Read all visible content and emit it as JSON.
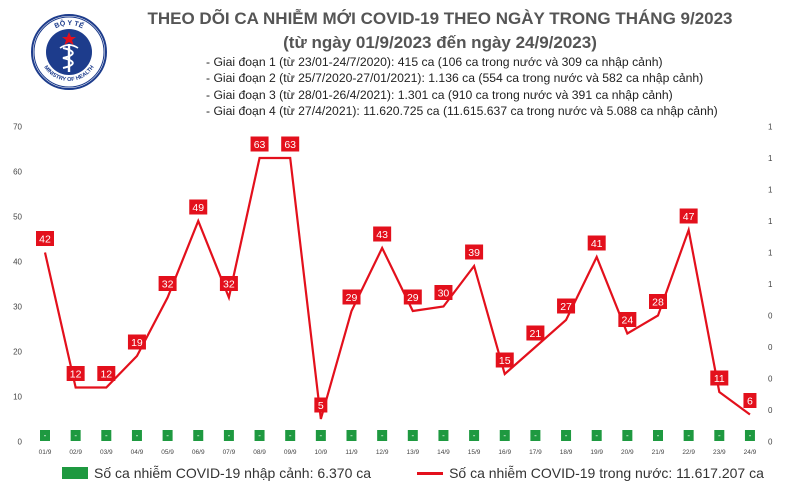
{
  "logo": {
    "top_text": "BỘ Y TẾ",
    "bottom_text": "MINISTRY OF HEALTH"
  },
  "header": {
    "title": "THEO DÕI CA NHIỄM MỚI COVID-19 THEO NGÀY TRONG THÁNG 9/2023",
    "subtitle": "(từ ngày 01/9/2023 đến ngày 24/9/2023)"
  },
  "phases": [
    "- Giai đoạn 1 (từ 23/01-24/7/2020): 415 ca (106 ca trong nước và 309 ca nhập cảnh)",
    "- Giai đoạn 2 (từ 25/7/2020-27/01/2021): 1.136 ca (554 ca trong nước và 582 ca nhập cảnh)",
    "- Giai đoạn 3 (từ 28/01-26/4/2021): 1.301 ca (910 ca trong nước và 391 ca nhập cảnh)",
    "- Giai đoạn 4 (từ 27/4/2021): 11.620.725 ca (11.615.637 ca trong nước và 5.088 ca nhập cảnh)"
  ],
  "legend": {
    "imported": "Số ca nhiễm COVID-19 nhập cảnh: 6.370 ca",
    "domestic": "Số ca nhiễm COVID-19 trong nước: 11.617.207 ca"
  },
  "chart_data": {
    "type": "line",
    "categories": [
      "01/9",
      "02/9",
      "03/9",
      "04/9",
      "05/9",
      "06/9",
      "07/9",
      "08/9",
      "09/9",
      "10/9",
      "11/9",
      "12/9",
      "13/9",
      "14/9",
      "15/9",
      "16/9",
      "17/9",
      "18/9",
      "19/9",
      "20/9",
      "21/9",
      "22/9",
      "23/9",
      "24/9"
    ],
    "series": [
      {
        "name": "Số ca nhiễm COVID-19 trong nước: 11.617.207 ca",
        "kind": "line",
        "color": "#e3101c",
        "values": [
          42,
          12,
          12,
          19,
          32,
          49,
          32,
          63,
          63,
          5,
          29,
          43,
          29,
          30,
          39,
          15,
          21,
          27,
          41,
          24,
          28,
          47,
          11,
          6
        ]
      },
      {
        "name": "Số ca nhiễm COVID-19 nhập cảnh: 6.370 ca",
        "kind": "bar",
        "color": "#1e9940",
        "axis": "right",
        "values": [
          0,
          0,
          0,
          0,
          0,
          0,
          0,
          0,
          0,
          0,
          0,
          0,
          0,
          0,
          0,
          0,
          0,
          0,
          0,
          0,
          0,
          0,
          0,
          0
        ],
        "labels": [
          "-",
          "-",
          "-",
          "-",
          "-",
          "-",
          "-",
          "-",
          "-",
          "-",
          "-",
          "-",
          "-",
          "-",
          "-",
          "-",
          "-",
          "-",
          "-",
          "-",
          "-",
          "-",
          "-",
          "-"
        ]
      }
    ],
    "y_left": {
      "ticks": [
        "0",
        "10",
        "20",
        "30",
        "40",
        "50",
        "60",
        "70"
      ],
      "ylim": [
        0,
        70
      ]
    },
    "y_right": {
      "ticks": [
        "0",
        "0",
        "0",
        "0",
        "0",
        "1",
        "1",
        "1",
        "1",
        "1",
        "1"
      ]
    },
    "grid": false,
    "legend_position": "bottom"
  }
}
